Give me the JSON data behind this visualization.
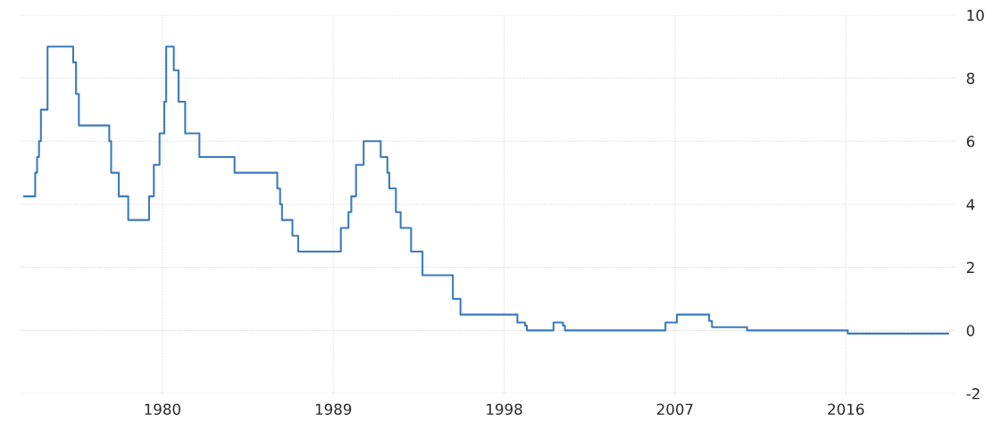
{
  "chart_data": {
    "type": "step",
    "x": [
      1972.7,
      1973.3,
      1973.4,
      1973.5,
      1973.6,
      1973.95,
      1975.3,
      1975.45,
      1975.6,
      1977.2,
      1977.3,
      1977.7,
      1978.2,
      1979.3,
      1979.55,
      1979.85,
      1980.1,
      1980.2,
      1980.6,
      1980.85,
      1981.2,
      1981.95,
      1983.8,
      1986.05,
      1986.2,
      1986.3,
      1986.85,
      1987.15,
      1989.4,
      1989.8,
      1989.95,
      1990.2,
      1990.6,
      1991.5,
      1991.85,
      1991.95,
      1992.3,
      1992.55,
      1993.1,
      1993.7,
      1995.3,
      1995.7,
      1998.7,
      1999.1,
      1999.2,
      2000.6,
      2001.1,
      2001.2,
      2006.5,
      2007.1,
      2008.8,
      2008.95,
      2010.8,
      2016.1,
      2021.4
    ],
    "series": [
      {
        "color": "#3a7abd",
        "values": [
          4.25,
          5,
          5.5,
          6,
          7,
          9,
          8.5,
          7.5,
          6.5,
          6,
          5,
          4.25,
          3.5,
          4.25,
          5.25,
          6.25,
          7.25,
          9,
          8.25,
          7.25,
          6.25,
          5.5,
          5,
          4.5,
          4,
          3.5,
          3,
          2.5,
          3.25,
          3.75,
          4.25,
          5.25,
          6,
          5.5,
          5,
          4.5,
          3.75,
          3.25,
          2.5,
          1.75,
          1,
          0.5,
          0.25,
          0.15,
          0,
          0.25,
          0.15,
          0,
          0.25,
          0.5,
          0.3,
          0.1,
          0,
          -0.1,
          -0.1
        ]
      }
    ],
    "xlim": [
      1972.5,
      2021.8
    ],
    "xticks": [
      1980,
      1989,
      1998,
      2007,
      2016
    ],
    "ylim": [
      -2,
      10
    ],
    "yticks": [
      -2,
      0,
      2,
      4,
      6,
      8,
      10
    ],
    "grid": true,
    "legend": false
  }
}
